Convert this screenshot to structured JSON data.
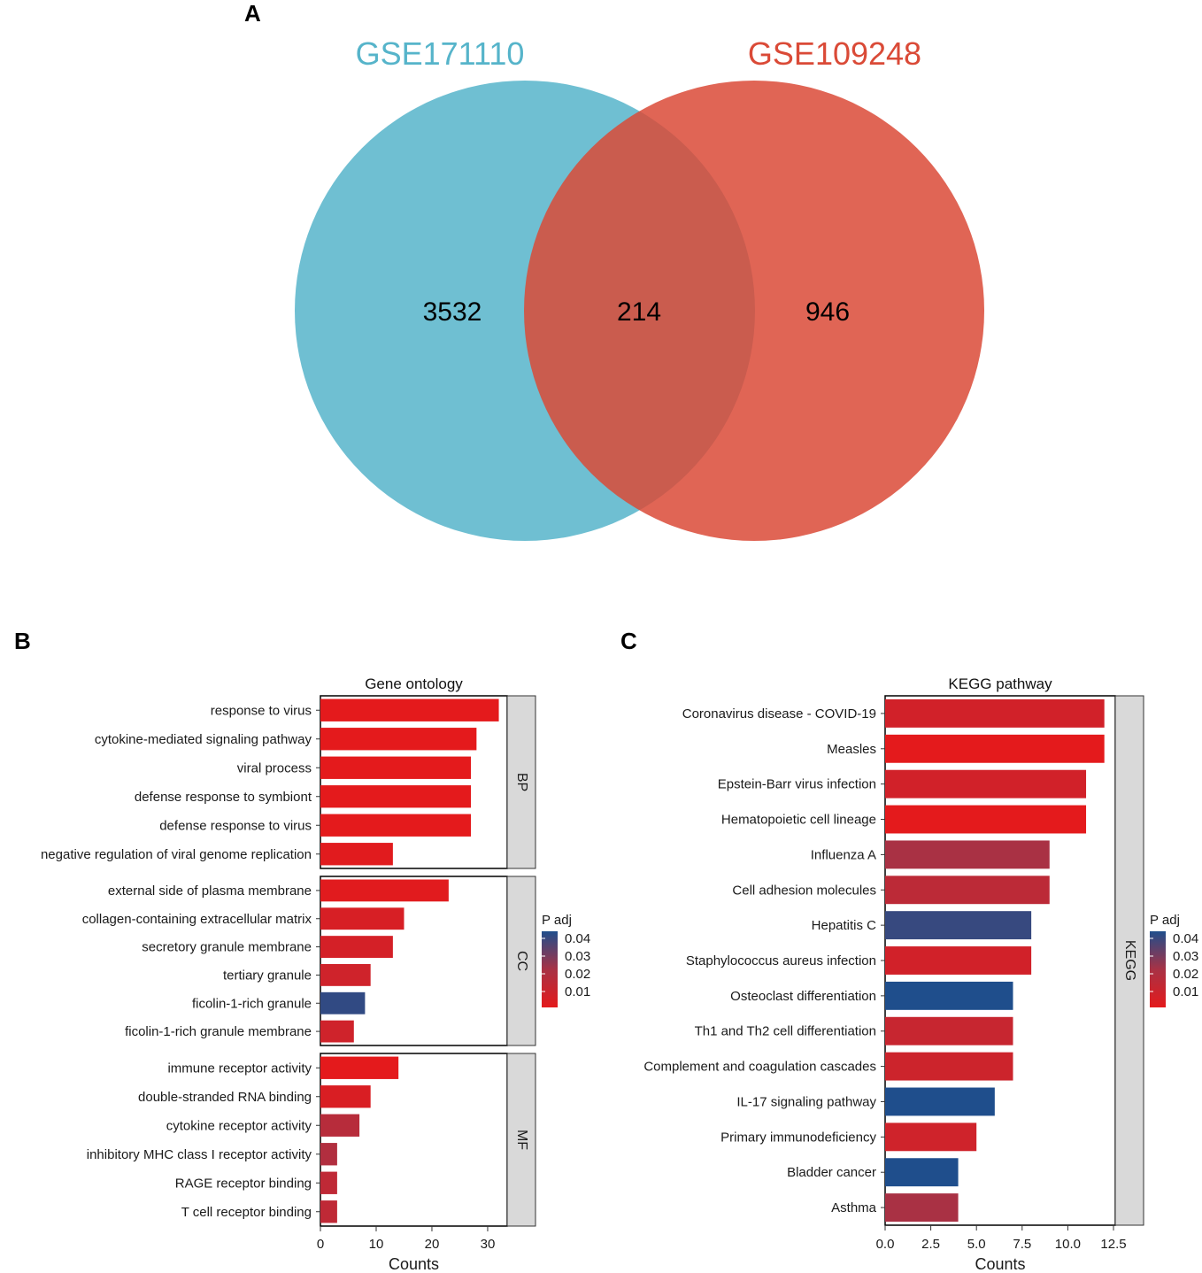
{
  "panels": {
    "a": "A",
    "b": "B",
    "c": "C"
  },
  "chart_data": [
    {
      "type": "venn",
      "sets": [
        {
          "name": "GSE171110",
          "color": "#56B4CA"
        },
        {
          "name": "GSE109248",
          "color": "#DA4A37"
        }
      ],
      "counts": {
        "left_only": "3532",
        "overlap": "214",
        "right_only": "946"
      }
    },
    {
      "type": "bar",
      "orientation": "horizontal",
      "title": "Gene ontology",
      "xlabel": "Counts",
      "xlim": [
        0,
        33.5
      ],
      "xticks": [
        0,
        10,
        20,
        30
      ],
      "legend": {
        "title": "P adj",
        "ticks": [
          "0.04",
          "0.03",
          "0.02",
          "0.01"
        ],
        "position": "right",
        "low_color": "#E41A1C",
        "high_color": "#1F4E8C"
      },
      "facets": [
        {
          "label": "BP",
          "items": [
            {
              "term": "response to virus",
              "count": 32,
              "padj": 0.001
            },
            {
              "term": "cytokine-mediated signaling pathway",
              "count": 28,
              "padj": 0.001
            },
            {
              "term": "viral process",
              "count": 27,
              "padj": 0.001
            },
            {
              "term": "defense response to symbiont",
              "count": 27,
              "padj": 0.001
            },
            {
              "term": "defense response to virus",
              "count": 27,
              "padj": 0.001
            },
            {
              "term": "negative regulation of viral genome replication",
              "count": 13,
              "padj": 0.002
            }
          ]
        },
        {
          "label": "CC",
          "items": [
            {
              "term": "external side of plasma membrane",
              "count": 23,
              "padj": 0.002
            },
            {
              "term": "collagen-containing extracellular matrix",
              "count": 15,
              "padj": 0.006
            },
            {
              "term": "secretory granule membrane",
              "count": 13,
              "padj": 0.007
            },
            {
              "term": "tertiary granule",
              "count": 9,
              "padj": 0.009
            },
            {
              "term": "ficolin-1-rich granule",
              "count": 8,
              "padj": 0.043
            },
            {
              "term": "ficolin-1-rich granule membrane",
              "count": 6,
              "padj": 0.009
            }
          ]
        },
        {
          "label": "MF",
          "items": [
            {
              "term": "immune receptor activity",
              "count": 14,
              "padj": 0.001
            },
            {
              "term": "double-stranded RNA binding",
              "count": 9,
              "padj": 0.005
            },
            {
              "term": "cytokine receptor activity",
              "count": 7,
              "padj": 0.018
            },
            {
              "term": "inhibitory MHC class I receptor activity",
              "count": 3,
              "padj": 0.02
            },
            {
              "term": "RAGE receptor binding",
              "count": 3,
              "padj": 0.015
            },
            {
              "term": "T cell receptor binding",
              "count": 3,
              "padj": 0.015
            }
          ]
        }
      ]
    },
    {
      "type": "bar",
      "orientation": "horizontal",
      "title": "KEGG pathway",
      "xlabel": "Counts",
      "xlim": [
        0,
        12.5
      ],
      "xticks": [
        0.0,
        2.5,
        5.0,
        7.5,
        10.0,
        12.5
      ],
      "xtick_labels": [
        "0.0",
        "2.5",
        "5.0",
        "7.5",
        "10.0",
        "12.5"
      ],
      "strip": "KEGG",
      "legend": {
        "title": "P adj",
        "ticks": [
          "0.04",
          "0.03",
          "0.02",
          "0.01"
        ],
        "position": "right",
        "low_color": "#E41A1C",
        "high_color": "#1F4E8C"
      },
      "items": [
        {
          "term": "Coronavirus disease - COVID-19",
          "count": 12,
          "padj": 0.008
        },
        {
          "term": "Measles",
          "count": 12,
          "padj": 0.001
        },
        {
          "term": "Epstein-Barr virus infection",
          "count": 11,
          "padj": 0.008
        },
        {
          "term": "Hematopoietic cell lineage",
          "count": 11,
          "padj": 0.001
        },
        {
          "term": "Influenza A",
          "count": 9,
          "padj": 0.023
        },
        {
          "term": "Cell adhesion molecules",
          "count": 9,
          "padj": 0.016
        },
        {
          "term": "Hepatitis C",
          "count": 8,
          "padj": 0.042
        },
        {
          "term": "Staphylococcus aureus infection",
          "count": 8,
          "padj": 0.008
        },
        {
          "term": "Osteoclast differentiation",
          "count": 7,
          "padj": 0.046
        },
        {
          "term": "Th1 and Th2 cell differentiation",
          "count": 7,
          "padj": 0.012
        },
        {
          "term": "Complement and coagulation cascades",
          "count": 7,
          "padj": 0.01
        },
        {
          "term": "IL-17 signaling pathway",
          "count": 6,
          "padj": 0.046
        },
        {
          "term": "Primary immunodeficiency",
          "count": 5,
          "padj": 0.009
        },
        {
          "term": "Bladder cancer",
          "count": 4,
          "padj": 0.046
        },
        {
          "term": "Asthma",
          "count": 4,
          "padj": 0.023
        }
      ]
    }
  ]
}
